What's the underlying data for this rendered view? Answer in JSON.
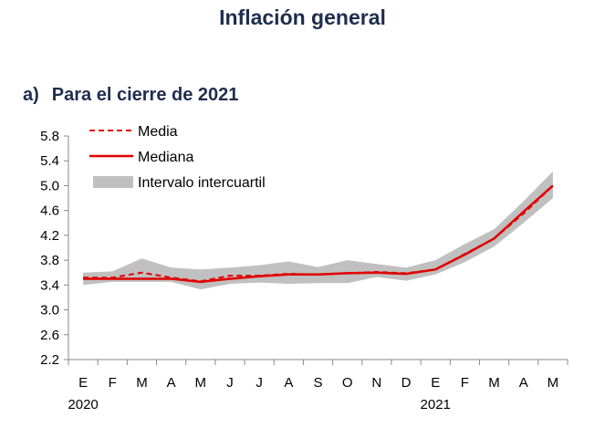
{
  "title": "Inflación general",
  "subtitle_letter": "a)",
  "subtitle_text": "Para el cierre de 2021",
  "colors": {
    "line": "#e00000",
    "band": "#c0c0c0",
    "axis": "#888888"
  },
  "chart_data": {
    "type": "line",
    "categories": [
      "E",
      "F",
      "M",
      "A",
      "M",
      "J",
      "J",
      "A",
      "S",
      "O",
      "N",
      "D",
      "E",
      "F",
      "M",
      "A",
      "M"
    ],
    "year_labels": [
      {
        "index": 0,
        "label": "2020"
      },
      {
        "index": 12,
        "label": "2021"
      }
    ],
    "ylim": [
      2.2,
      5.8
    ],
    "yticks": [
      2.2,
      2.6,
      3.0,
      3.4,
      3.8,
      4.2,
      4.6,
      5.0,
      5.4,
      5.8
    ],
    "series": [
      {
        "name": "Media",
        "style": "dashed",
        "values": [
          3.52,
          3.52,
          3.6,
          3.52,
          3.46,
          3.55,
          3.55,
          3.58,
          3.57,
          3.59,
          3.61,
          3.59,
          3.65,
          3.9,
          4.15,
          4.55,
          5.0
        ]
      },
      {
        "name": "Mediana",
        "style": "solid",
        "values": [
          3.5,
          3.5,
          3.5,
          3.5,
          3.45,
          3.5,
          3.54,
          3.57,
          3.57,
          3.59,
          3.6,
          3.58,
          3.65,
          3.89,
          4.15,
          4.58,
          5.0
        ]
      },
      {
        "name": "Intervalo intercuartil",
        "style": "band",
        "lower": [
          3.4,
          3.45,
          3.45,
          3.45,
          3.33,
          3.42,
          3.44,
          3.42,
          3.43,
          3.43,
          3.53,
          3.47,
          3.57,
          3.77,
          4.02,
          4.4,
          4.8
        ],
        "upper": [
          3.6,
          3.62,
          3.83,
          3.68,
          3.65,
          3.68,
          3.72,
          3.78,
          3.69,
          3.8,
          3.74,
          3.68,
          3.8,
          4.06,
          4.3,
          4.75,
          5.23
        ]
      }
    ]
  }
}
